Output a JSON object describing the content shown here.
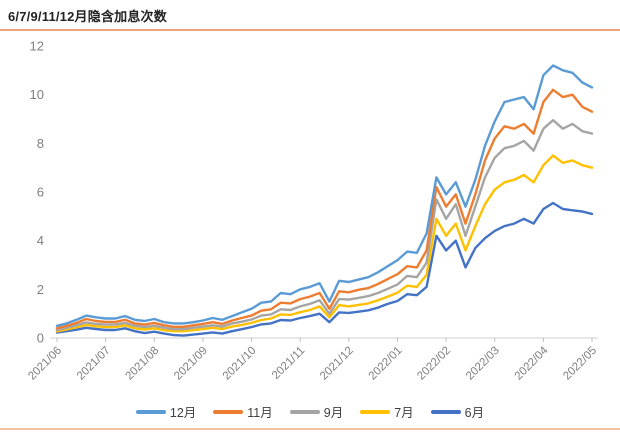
{
  "chart_data": {
    "type": "line",
    "title": "6/7/9/11/12月隐含加息次数",
    "xlabel": "",
    "ylabel": "",
    "ylim": [
      0,
      12
    ],
    "y_ticks": [
      0,
      2,
      4,
      6,
      8,
      10,
      12
    ],
    "x_labels": [
      "2021/06",
      "2021/07",
      "2021/08",
      "2021/09",
      "2021/10",
      "2021/11",
      "2021/12",
      "2022/01",
      "2022/02",
      "2022/03",
      "2022/04",
      "2022/05"
    ],
    "x_start": "2021/06",
    "x_step_months": 0.2,
    "grid": false,
    "legend_position": "bottom",
    "series": [
      {
        "name": "12月",
        "color": "#5B9BD5",
        "values": [
          0.5,
          0.6,
          0.75,
          0.92,
          0.85,
          0.8,
          0.8,
          0.9,
          0.75,
          0.7,
          0.78,
          0.65,
          0.6,
          0.6,
          0.65,
          0.72,
          0.82,
          0.75,
          0.9,
          1.05,
          1.2,
          1.45,
          1.5,
          1.85,
          1.8,
          2.0,
          2.1,
          2.25,
          1.5,
          2.35,
          2.3,
          2.4,
          2.5,
          2.7,
          2.95,
          3.2,
          3.55,
          3.5,
          4.3,
          6.6,
          5.9,
          6.4,
          5.4,
          6.5,
          7.9,
          8.9,
          9.7,
          9.8,
          9.9,
          9.4,
          10.8,
          11.2,
          11.0,
          10.9,
          10.5,
          10.3
        ]
      },
      {
        "name": "11月",
        "color": "#ED7D31",
        "values": [
          0.4,
          0.5,
          0.62,
          0.78,
          0.7,
          0.66,
          0.66,
          0.75,
          0.6,
          0.55,
          0.62,
          0.52,
          0.46,
          0.46,
          0.52,
          0.58,
          0.65,
          0.58,
          0.72,
          0.82,
          0.92,
          1.12,
          1.18,
          1.45,
          1.42,
          1.6,
          1.7,
          1.85,
          1.2,
          1.92,
          1.88,
          1.98,
          2.05,
          2.22,
          2.42,
          2.62,
          2.95,
          2.9,
          3.6,
          6.2,
          5.4,
          5.9,
          4.7,
          5.9,
          7.3,
          8.2,
          8.7,
          8.6,
          8.8,
          8.4,
          9.7,
          10.2,
          9.9,
          10.0,
          9.5,
          9.3
        ]
      },
      {
        "name": "9月",
        "color": "#A5A5A5",
        "values": [
          0.32,
          0.42,
          0.52,
          0.64,
          0.58,
          0.55,
          0.55,
          0.62,
          0.5,
          0.45,
          0.5,
          0.42,
          0.36,
          0.36,
          0.42,
          0.47,
          0.52,
          0.47,
          0.6,
          0.67,
          0.76,
          0.92,
          0.97,
          1.18,
          1.15,
          1.3,
          1.4,
          1.55,
          1.0,
          1.6,
          1.58,
          1.65,
          1.72,
          1.85,
          2.02,
          2.2,
          2.55,
          2.5,
          3.1,
          5.7,
          4.9,
          5.5,
          4.2,
          5.4,
          6.6,
          7.4,
          7.8,
          7.9,
          8.1,
          7.7,
          8.6,
          8.95,
          8.6,
          8.8,
          8.5,
          8.4
        ]
      },
      {
        "name": "7月",
        "color": "#FFC000",
        "values": [
          0.27,
          0.35,
          0.44,
          0.54,
          0.48,
          0.45,
          0.45,
          0.52,
          0.4,
          0.35,
          0.4,
          0.32,
          0.28,
          0.28,
          0.32,
          0.37,
          0.42,
          0.37,
          0.47,
          0.54,
          0.62,
          0.74,
          0.8,
          0.97,
          0.95,
          1.06,
          1.15,
          1.3,
          0.85,
          1.35,
          1.3,
          1.36,
          1.42,
          1.55,
          1.7,
          1.86,
          2.15,
          2.1,
          2.6,
          4.9,
          4.2,
          4.7,
          3.6,
          4.6,
          5.5,
          6.1,
          6.4,
          6.5,
          6.7,
          6.4,
          7.1,
          7.5,
          7.2,
          7.3,
          7.1,
          7.0
        ]
      },
      {
        "name": "6月",
        "color": "#4472C4",
        "values": [
          0.22,
          0.28,
          0.34,
          0.42,
          0.37,
          0.33,
          0.33,
          0.4,
          0.28,
          0.2,
          0.26,
          0.18,
          0.12,
          0.1,
          0.14,
          0.18,
          0.23,
          0.18,
          0.28,
          0.36,
          0.45,
          0.56,
          0.6,
          0.74,
          0.72,
          0.82,
          0.9,
          1.0,
          0.65,
          1.05,
          1.03,
          1.08,
          1.14,
          1.25,
          1.4,
          1.52,
          1.8,
          1.76,
          2.1,
          4.2,
          3.6,
          4.0,
          2.9,
          3.7,
          4.1,
          4.4,
          4.6,
          4.7,
          4.9,
          4.7,
          5.3,
          5.55,
          5.3,
          5.25,
          5.2,
          5.1
        ]
      }
    ]
  },
  "styles": {
    "rule_top_color": "#EFA379",
    "rule_bottom_color": "#F4C3A2",
    "axis_color": "#D9D9D9",
    "tick_color": "#BFBFBF",
    "axis_label_color": "#7F7F7F",
    "legend_text_color": "#404040",
    "title_color": "#222222"
  }
}
